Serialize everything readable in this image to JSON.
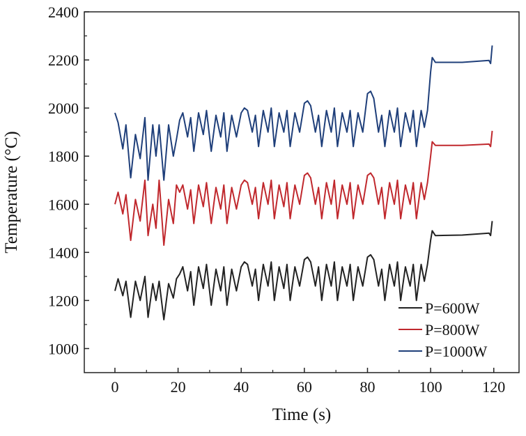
{
  "chart_data": {
    "type": "line",
    "title": "",
    "xlabel": "Time (s)",
    "ylabel": "Temperature (°C)",
    "xlim": [
      -9.7,
      128
    ],
    "ylim": [
      900,
      2400
    ],
    "xticks": [
      0,
      20,
      40,
      60,
      80,
      100,
      120
    ],
    "yticks": [
      1000,
      1200,
      1400,
      1600,
      1800,
      2000,
      2200,
      2400
    ],
    "grid": false,
    "legend_position": "bottom-right",
    "x": [
      0,
      1,
      2.5,
      3.5,
      5,
      6.5,
      8,
      9.5,
      10.5,
      12,
      13,
      14,
      15.5,
      17,
      18.5,
      19.5,
      20.5,
      21.5,
      23,
      24,
      25,
      26.5,
      28,
      29,
      30.5,
      32,
      33.5,
      34.5,
      35.5,
      37,
      38.5,
      40,
      41,
      42,
      43.5,
      44.5,
      45.5,
      47,
      48.5,
      49.5,
      50.5,
      52,
      53.5,
      54.5,
      55.5,
      57,
      58.5,
      60,
      61,
      62,
      63.5,
      64.5,
      65.5,
      67,
      68.5,
      69.5,
      70.5,
      72,
      73.5,
      74.5,
      75.5,
      77,
      78.5,
      80,
      81,
      82,
      83.5,
      84.5,
      85.5,
      87,
      88.5,
      89.5,
      90.5,
      92,
      93.5,
      94.5,
      95.5,
      97,
      98,
      99,
      100,
      100.5,
      101.5,
      110,
      118.5,
      119,
      119.5
    ],
    "series": [
      {
        "name": "P=600W",
        "color": "#222222",
        "values": [
          1240,
          1290,
          1220,
          1280,
          1130,
          1280,
          1200,
          1300,
          1130,
          1270,
          1200,
          1280,
          1120,
          1270,
          1210,
          1290,
          1310,
          1340,
          1240,
          1320,
          1180,
          1340,
          1250,
          1350,
          1180,
          1330,
          1240,
          1340,
          1180,
          1330,
          1240,
          1340,
          1360,
          1350,
          1260,
          1330,
          1200,
          1350,
          1260,
          1360,
          1200,
          1340,
          1250,
          1350,
          1200,
          1340,
          1260,
          1370,
          1380,
          1360,
          1260,
          1340,
          1200,
          1350,
          1260,
          1360,
          1200,
          1340,
          1260,
          1350,
          1200,
          1340,
          1260,
          1380,
          1390,
          1370,
          1260,
          1330,
          1200,
          1350,
          1260,
          1360,
          1200,
          1340,
          1260,
          1350,
          1200,
          1350,
          1280,
          1350,
          1450,
          1490,
          1470,
          1472,
          1480,
          1470,
          1530
        ]
      },
      {
        "name": "P=800W",
        "color": "#c0282d",
        "values": [
          1600,
          1650,
          1560,
          1640,
          1450,
          1620,
          1530,
          1700,
          1470,
          1600,
          1500,
          1700,
          1430,
          1620,
          1520,
          1680,
          1650,
          1680,
          1580,
          1660,
          1520,
          1680,
          1590,
          1690,
          1520,
          1670,
          1580,
          1680,
          1520,
          1670,
          1580,
          1680,
          1700,
          1690,
          1600,
          1670,
          1540,
          1690,
          1600,
          1700,
          1540,
          1680,
          1590,
          1690,
          1540,
          1680,
          1600,
          1720,
          1730,
          1710,
          1600,
          1670,
          1540,
          1690,
          1600,
          1700,
          1540,
          1680,
          1600,
          1690,
          1540,
          1680,
          1600,
          1720,
          1730,
          1710,
          1600,
          1670,
          1540,
          1690,
          1600,
          1700,
          1540,
          1680,
          1600,
          1690,
          1540,
          1690,
          1620,
          1690,
          1800,
          1860,
          1845,
          1845,
          1850,
          1840,
          1905
        ]
      },
      {
        "name": "P=1000W",
        "color": "#1f3f7a",
        "values": [
          1980,
          1940,
          1830,
          1930,
          1710,
          1890,
          1790,
          1960,
          1700,
          1930,
          1800,
          1930,
          1700,
          1930,
          1800,
          1870,
          1950,
          1980,
          1880,
          1960,
          1820,
          1980,
          1890,
          1990,
          1820,
          1970,
          1880,
          1980,
          1820,
          1970,
          1880,
          1980,
          2000,
          1990,
          1900,
          1970,
          1840,
          1990,
          1900,
          2000,
          1840,
          1980,
          1900,
          1990,
          1840,
          1980,
          1900,
          2020,
          2030,
          2010,
          1900,
          1970,
          1840,
          1990,
          1900,
          2000,
          1840,
          1980,
          1900,
          1990,
          1840,
          1980,
          1900,
          2060,
          2070,
          2040,
          1900,
          1970,
          1840,
          1990,
          1900,
          2000,
          1840,
          1980,
          1900,
          1990,
          1840,
          1990,
          1920,
          1990,
          2150,
          2210,
          2190,
          2190,
          2198,
          2185,
          2260
        ]
      }
    ]
  }
}
